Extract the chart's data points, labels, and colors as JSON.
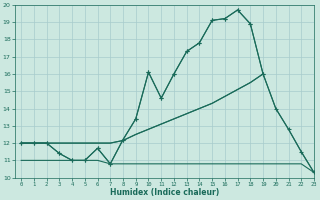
{
  "x": [
    0,
    1,
    2,
    3,
    4,
    5,
    6,
    7,
    8,
    9,
    10,
    11,
    12,
    13,
    14,
    15,
    16,
    17,
    18,
    19,
    20,
    21,
    22,
    23
  ],
  "line_main": [
    12,
    12,
    12,
    11.4,
    11,
    11,
    11.7,
    10.8,
    12.2,
    13.4,
    16.1,
    14.6,
    16.0,
    17.3,
    17.8,
    19.1,
    19.2,
    19.7,
    18.9,
    16.0,
    14.0,
    12.8,
    11.5,
    10.3
  ],
  "line_upper_partial": [
    12,
    12,
    12,
    11.4,
    11,
    11,
    11.7,
    10.8,
    12.2,
    13.4,
    16.1,
    14.6,
    16.0,
    17.3,
    17.8,
    19.1,
    19.2,
    19.7,
    18.9,
    16.0,
    null,
    null,
    null,
    null
  ],
  "line_diag_full": [
    12,
    12,
    12,
    12,
    12,
    12,
    12,
    12,
    12.15,
    12.5,
    12.8,
    13.1,
    13.4,
    13.7,
    14.0,
    14.3,
    14.7,
    15.1,
    15.5,
    16.0,
    14.0,
    12.8,
    11.5,
    10.3
  ],
  "line_diag_partial": [
    12,
    12,
    12,
    12,
    12,
    12,
    12,
    12,
    12.15,
    12.5,
    12.8,
    13.1,
    13.4,
    13.7,
    14.0,
    14.3,
    14.7,
    15.1,
    15.5,
    16.0,
    null,
    null,
    null,
    null
  ],
  "line_flat": [
    11,
    11,
    11,
    11,
    11,
    11,
    11,
    10.8,
    10.8,
    10.8,
    10.8,
    10.8,
    10.8,
    10.8,
    10.8,
    10.8,
    10.8,
    10.8,
    10.8,
    10.8,
    10.8,
    10.8,
    10.8,
    10.3
  ],
  "color": "#1a6b5a",
  "bg_color": "#cce8e0",
  "grid_color": "#a8cccc",
  "xlabel": "Humidex (Indice chaleur)",
  "ylabel_ticks": [
    10,
    11,
    12,
    13,
    14,
    15,
    16,
    17,
    18,
    19,
    20
  ],
  "xlabel_ticks": [
    0,
    1,
    2,
    3,
    4,
    5,
    6,
    7,
    8,
    9,
    10,
    11,
    12,
    13,
    14,
    15,
    16,
    17,
    18,
    19,
    20,
    21,
    22,
    23
  ],
  "ylim": [
    10,
    20
  ],
  "xlim": [
    -0.5,
    23
  ]
}
